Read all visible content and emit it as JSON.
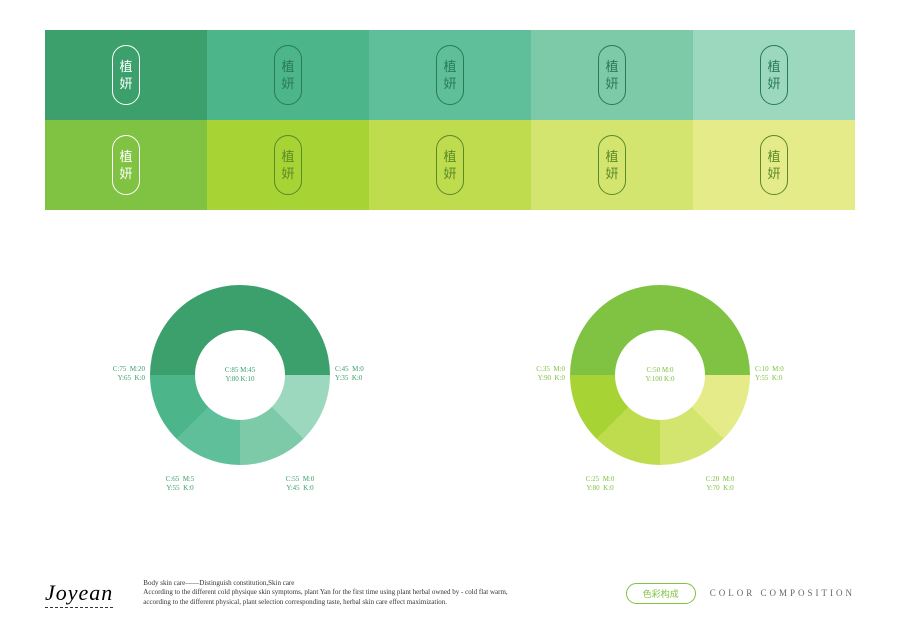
{
  "logo": {
    "char1": "植",
    "char2": "妍"
  },
  "swatches": {
    "row1": [
      {
        "bg": "#3ba06c",
        "fg": "#ffffff"
      },
      {
        "bg": "#4cb58a",
        "fg": "#2a7a56"
      },
      {
        "bg": "#5fbf9a",
        "fg": "#2a7a56"
      },
      {
        "bg": "#7dcaa9",
        "fg": "#2a7a56"
      },
      {
        "bg": "#9cd8bd",
        "fg": "#2a7a56"
      }
    ],
    "row2": [
      {
        "bg": "#80c242",
        "fg": "#ffffff"
      },
      {
        "bg": "#a8d335",
        "fg": "#5a8a28"
      },
      {
        "bg": "#bfdc4e",
        "fg": "#5a8a28"
      },
      {
        "bg": "#d4e56f",
        "fg": "#5a8a28"
      },
      {
        "bg": "#e6eb8a",
        "fg": "#5a8a28"
      }
    ]
  },
  "chart1": {
    "label_color": "#3ba06c",
    "center_l1": "C:85  M:45",
    "center_l2": "Y:80  K:10",
    "slices": [
      {
        "color": "#3ba06c",
        "l1": "C:85  M:45",
        "l2": "Y:80  K:10"
      },
      {
        "color": "#9cd8bd",
        "l1": "C:45  M:0",
        "l2": "Y:35  K:0"
      },
      {
        "color": "#7dcaa9",
        "l1": "C:55  M:0",
        "l2": "Y:45  K:0"
      },
      {
        "color": "#5fbf9a",
        "l1": "C:65  M:5",
        "l2": "Y:55  K:0"
      },
      {
        "color": "#4cb58a",
        "l1": "C:75  M:20",
        "l2": "Y:65  K:0"
      }
    ]
  },
  "chart2": {
    "label_color": "#80c242",
    "center_l1": "C:50  M:0",
    "center_l2": "Y:100 K:0",
    "slices": [
      {
        "color": "#80c242",
        "l1": "C:50  M:0",
        "l2": "Y:100 K:0"
      },
      {
        "color": "#e6eb8a",
        "l1": "C:10  M:0",
        "l2": "Y:55  K:0"
      },
      {
        "color": "#d4e56f",
        "l1": "C:20  M:0",
        "l2": "Y:70  K:0"
      },
      {
        "color": "#bfdc4e",
        "l1": "C:25  M:0",
        "l2": "Y:80  K:0"
      },
      {
        "color": "#a8d335",
        "l1": "C:35  M:0",
        "l2": "Y:90  K:0"
      }
    ]
  },
  "footer": {
    "brand": "Joyean",
    "line1": "Body skin care——Distinguish constitution,Skin care",
    "line2": "According to the different cold physique skin symptoms, plant Yan for the first time using plant herbal owned by - cold flat warm,",
    "line3": "according to the different physical, plant selection corresponding taste, herbal skin care effect maximization.",
    "badge_text": "色彩构成",
    "badge_color": "#80c242",
    "comp_label": "COLOR COMPOSITION"
  }
}
